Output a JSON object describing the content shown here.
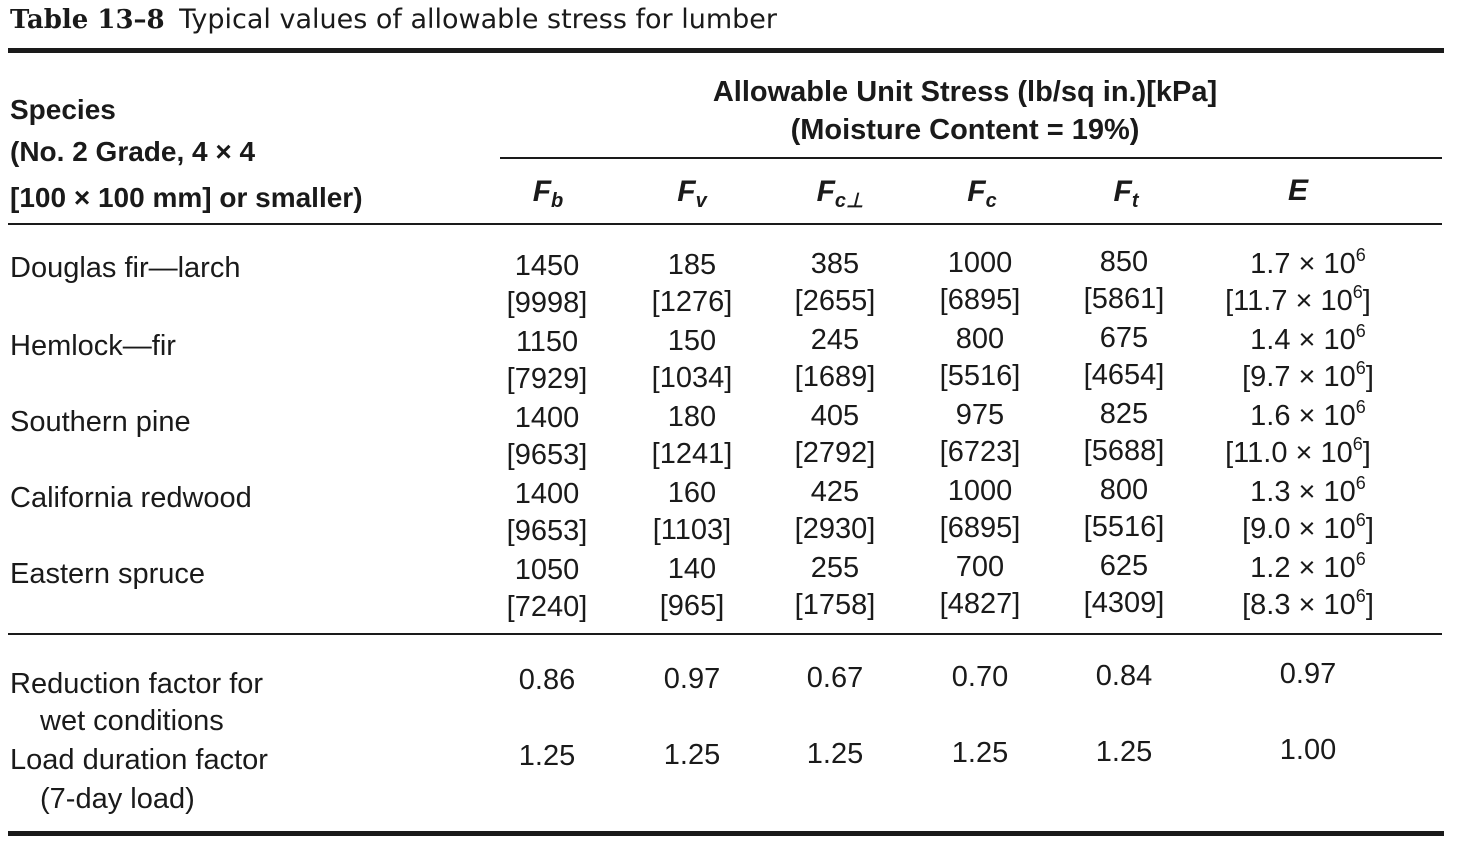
{
  "caption": {
    "label": "Table 13–8",
    "text": "Typical values of allowable stress for lumber"
  },
  "header": {
    "species_lines": [
      "Species",
      "(No. 2 Grade, 4 × 4",
      "[100 × 100 mm] or smaller)"
    ],
    "group_line1": "Allowable Unit Stress (lb/sq in.)[kPa]",
    "group_line2": "(Moisture Content = 19%)",
    "columns": [
      {
        "base": "F",
        "sub": "b"
      },
      {
        "base": "F",
        "sub": "v"
      },
      {
        "base": "F",
        "sub": "c⊥"
      },
      {
        "base": "F",
        "sub": "c"
      },
      {
        "base": "F",
        "sub": "t"
      },
      {
        "base": "E",
        "sub": ""
      }
    ]
  },
  "rows": [
    {
      "species": "Douglas fir—larch",
      "values": [
        "1450",
        "185",
        "385",
        "1000",
        "850"
      ],
      "metric": [
        "[9998]",
        "[1276]",
        "[2655]",
        "[6895]",
        "[5861]"
      ],
      "e_main": "1.7 × 10",
      "e_exp": "6",
      "e_metric": "[11.7 × 10",
      "e_metric_exp": "6",
      "e_metric_close": "]"
    },
    {
      "species": "Hemlock—fir",
      "values": [
        "1150",
        "150",
        "245",
        "800",
        "675"
      ],
      "metric": [
        "[7929]",
        "[1034]",
        "[1689]",
        "[5516]",
        "[4654]"
      ],
      "e_main": "1.4 × 10",
      "e_exp": "6",
      "e_metric": "[9.7 × 10",
      "e_metric_exp": "6",
      "e_metric_close": "]"
    },
    {
      "species": "Southern pine",
      "values": [
        "1400",
        "180",
        "405",
        "975",
        "825"
      ],
      "metric": [
        "[9653]",
        "[1241]",
        "[2792]",
        "[6723]",
        "[5688]"
      ],
      "e_main": "1.6 × 10",
      "e_exp": "6",
      "e_metric": "[11.0 × 10",
      "e_metric_exp": "6",
      "e_metric_close": "]"
    },
    {
      "species": "California redwood",
      "values": [
        "1400",
        "160",
        "425",
        "1000",
        "800"
      ],
      "metric": [
        "[9653]",
        "[1103]",
        "[2930]",
        "[6895]",
        "[5516]"
      ],
      "e_main": "1.3 × 10",
      "e_exp": "6",
      "e_metric": "[9.0 × 10",
      "e_metric_exp": "6",
      "e_metric_close": "]"
    },
    {
      "species": "Eastern spruce",
      "values": [
        "1050",
        "140",
        "255",
        "700",
        "625"
      ],
      "metric": [
        "[7240]",
        "[965]",
        "[1758]",
        "[4827]",
        "[4309]"
      ],
      "e_main": "1.2 × 10",
      "e_exp": "6",
      "e_metric": "[8.3 × 10",
      "e_metric_exp": "6",
      "e_metric_close": "]"
    }
  ],
  "factors": [
    {
      "label_lines": [
        "Reduction factor for",
        "wet conditions"
      ],
      "values": [
        "0.86",
        "0.97",
        "0.67",
        "0.70",
        "0.84",
        "0.97"
      ]
    },
    {
      "label_lines": [
        "Load duration factor",
        "(7-day load)"
      ],
      "values": [
        "1.25",
        "1.25",
        "1.25",
        "1.25",
        "1.25",
        "1.00"
      ]
    }
  ]
}
